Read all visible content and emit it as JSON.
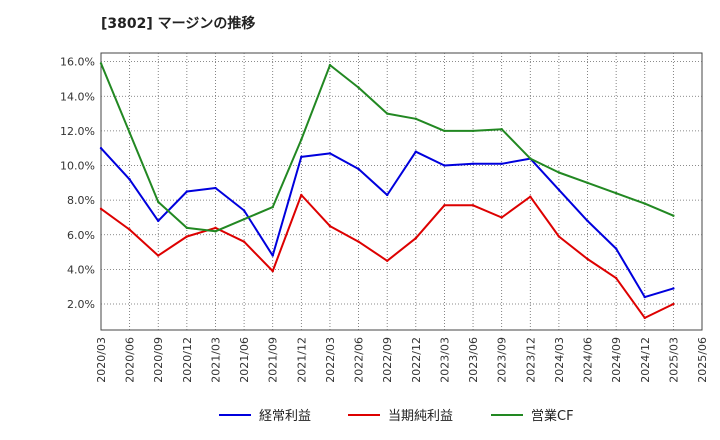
{
  "chart_data": {
    "type": "line",
    "title": "[3802]  マージンの推移",
    "xlabel": "",
    "ylabel": "",
    "ylim": [
      0.5,
      16.5
    ],
    "y_ticks": [
      "2.0%",
      "4.0%",
      "6.0%",
      "8.0%",
      "10.0%",
      "12.0%",
      "14.0%",
      "16.0%"
    ],
    "y_tick_values": [
      2,
      4,
      6,
      8,
      10,
      12,
      14,
      16
    ],
    "x": [
      "2020/03",
      "2020/06",
      "2020/09",
      "2020/12",
      "2021/03",
      "2021/06",
      "2021/09",
      "2021/12",
      "2022/03",
      "2022/06",
      "2022/09",
      "2022/12",
      "2023/03",
      "2023/06",
      "2023/09",
      "2023/12",
      "2024/03",
      "2024/06",
      "2024/09",
      "2024/12",
      "2025/03",
      "2025/06"
    ],
    "grid": true,
    "legend_position": "bottom",
    "series": [
      {
        "name": "経常利益",
        "color": "#0000dd",
        "values": [
          11.0,
          9.2,
          6.8,
          8.5,
          8.7,
          7.4,
          4.8,
          10.5,
          10.7,
          9.8,
          8.3,
          10.8,
          10.0,
          10.1,
          10.1,
          10.4,
          8.6,
          6.8,
          5.2,
          2.4,
          2.9,
          null
        ]
      },
      {
        "name": "当期純利益",
        "color": "#dd0000",
        "values": [
          7.5,
          6.3,
          4.8,
          5.9,
          6.4,
          5.6,
          3.9,
          8.3,
          6.5,
          5.6,
          4.5,
          5.8,
          7.7,
          7.7,
          7.0,
          8.2,
          5.9,
          4.6,
          3.5,
          1.2,
          2.0,
          null
        ]
      },
      {
        "name": "営業CF",
        "color": "#228822",
        "values": [
          15.9,
          11.9,
          7.9,
          6.4,
          6.2,
          6.9,
          7.6,
          11.5,
          15.8,
          14.5,
          13.0,
          12.7,
          12.0,
          12.0,
          12.1,
          10.4,
          9.6,
          9.0,
          8.4,
          7.8,
          7.1,
          null
        ]
      }
    ]
  }
}
